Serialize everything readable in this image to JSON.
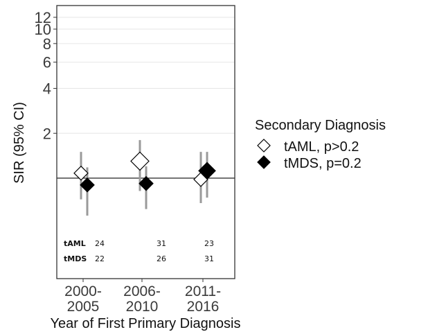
{
  "chart_data": {
    "type": "scatter",
    "title": "",
    "xlabel": "Year of First Primary Diagnosis",
    "ylabel": "SIR (95% CI)",
    "y_scale": "log",
    "ylim": [
      0.5,
      14
    ],
    "y_ticks": [
      2,
      4,
      6,
      8,
      10,
      12
    ],
    "reference_line": 1,
    "grid": true,
    "categories": [
      "2000-\n2005",
      "2006-\n2010",
      "2011-\n2016"
    ],
    "category_lines": [
      [
        "2000-",
        "2005"
      ],
      [
        "2006-",
        "2010"
      ],
      [
        "2011-",
        "2016"
      ]
    ],
    "legend": {
      "title": "Secondary Diagnosis",
      "position": "right"
    },
    "series": [
      {
        "name": "tAML, p>0.2",
        "marker": "diamond-open",
        "values": [
          1.08,
          1.3,
          0.98
        ],
        "ci_low": [
          0.72,
          0.82,
          0.68
        ],
        "ci_high": [
          1.5,
          1.8,
          1.5
        ]
      },
      {
        "name": "tMDS, p=0.2",
        "marker": "diamond-filled",
        "values": [
          0.9,
          0.92,
          1.12
        ],
        "ci_low": [
          0.56,
          0.62,
          0.74
        ],
        "ci_high": [
          1.18,
          1.2,
          1.5
        ]
      }
    ],
    "count_table": {
      "rows": [
        {
          "label": "tAML",
          "values": [
            "24",
            "31",
            "23"
          ]
        },
        {
          "label": "tMDS",
          "values": [
            "22",
            "26",
            "31"
          ]
        }
      ]
    },
    "colors": {
      "errorbar": "#9a9a9a",
      "marker_fill": "#000000",
      "open_fill": "#ffffff",
      "gridline": "#e6e6e6"
    }
  }
}
